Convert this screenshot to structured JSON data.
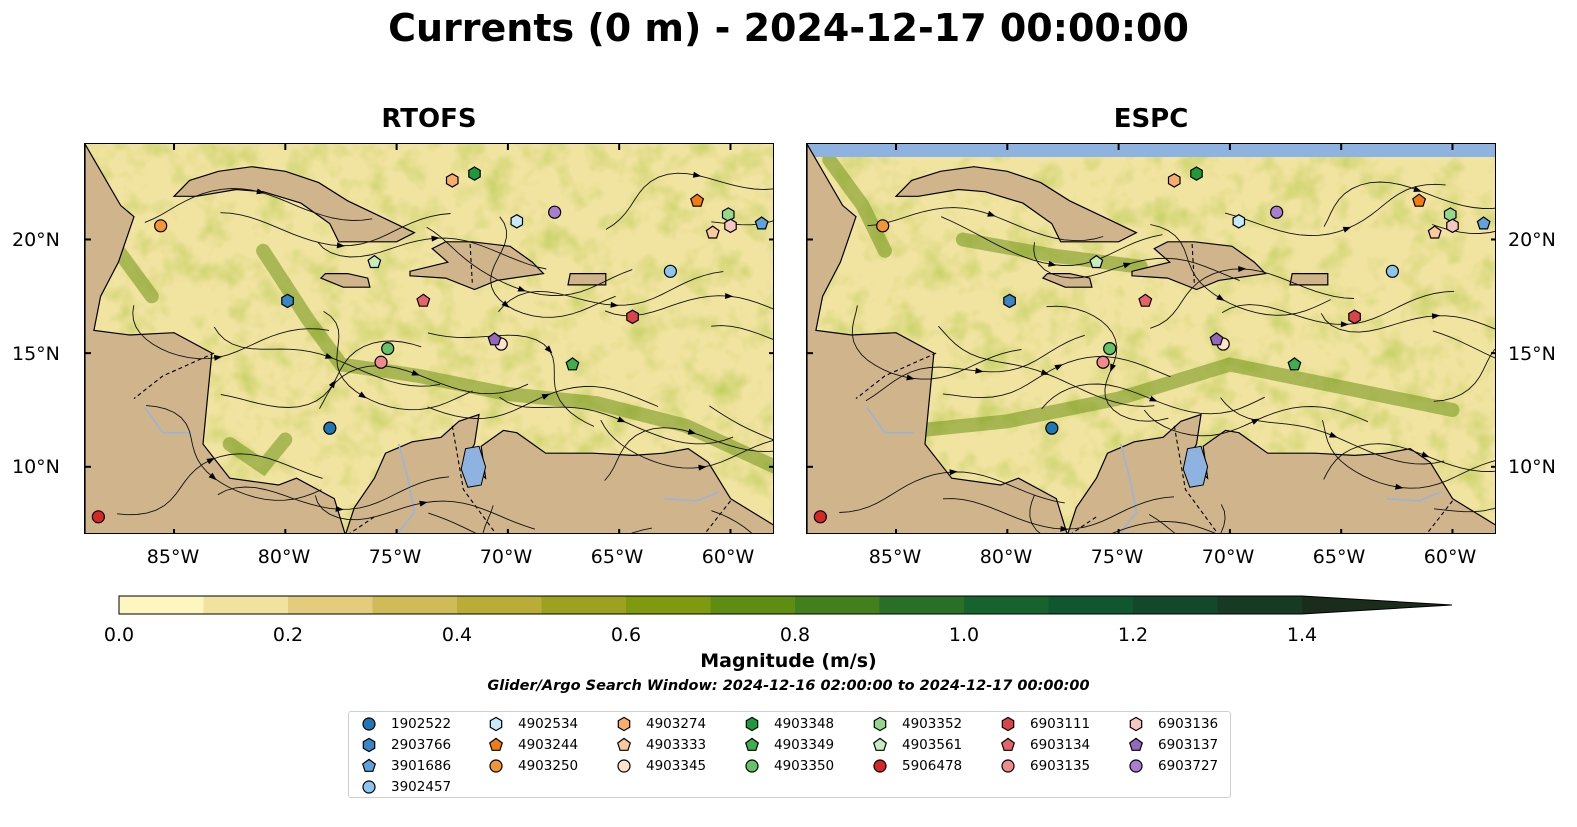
{
  "title": "Currents (0 m) - 2024-12-17 00:00:00",
  "panels": [
    {
      "name": "RTOFS"
    },
    {
      "name": "ESPC"
    }
  ],
  "map": {
    "lon_range": [
      -89,
      -58
    ],
    "lat_range": [
      7,
      24.2
    ],
    "lon_ticks": [
      "85°W",
      "80°W",
      "75°W",
      "70°W",
      "65°W",
      "60°W"
    ],
    "lat_ticks": [
      "20°N",
      "15°N",
      "10°N"
    ],
    "colors": {
      "land": "#d0b48c",
      "water_body": "#8fb3e0",
      "rivers": "#9ab5d8",
      "border": "#000000"
    }
  },
  "colorbar": {
    "label": "Magnitude (m/s)",
    "ticks": [
      "0.0",
      "0.2",
      "0.4",
      "0.6",
      "0.8",
      "1.0",
      "1.2",
      "1.4"
    ],
    "range": [
      0,
      1.5
    ],
    "extend": "max",
    "colors": [
      "#fdf6bf",
      "#f2e2a0",
      "#e3cd7c",
      "#cfbb57",
      "#b9ad38",
      "#9ca220",
      "#7f9a0f",
      "#5f8d12",
      "#437f1c",
      "#2a6f27",
      "#17632e",
      "#10562e",
      "#13482a",
      "#173a24",
      "#1a2d1c"
    ]
  },
  "search_window": "Glider/Argo Search Window: 2024-12-16 02:00:00 to 2024-12-17 00:00:00",
  "legend": [
    {
      "id": "1902522",
      "marker": "circle",
      "color": "#1f77b4"
    },
    {
      "id": "2903766",
      "marker": "hexagon",
      "color": "#3a85c6"
    },
    {
      "id": "3901686",
      "marker": "pentagon",
      "color": "#5fa2dd"
    },
    {
      "id": "3902457",
      "marker": "circle",
      "color": "#8ec5ee"
    },
    {
      "id": "4902534",
      "marker": "hexagon",
      "color": "#c6e9fb"
    },
    {
      "id": "4903244",
      "marker": "pentagon",
      "color": "#f07c12"
    },
    {
      "id": "4903250",
      "marker": "circle",
      "color": "#f5953a"
    },
    {
      "id": "4903274",
      "marker": "hexagon",
      "color": "#f9ad6b"
    },
    {
      "id": "4903333",
      "marker": "pentagon",
      "color": "#fcc89d"
    },
    {
      "id": "4903345",
      "marker": "circle",
      "color": "#fde2cc"
    },
    {
      "id": "4903348",
      "marker": "hexagon",
      "color": "#1e9a3a"
    },
    {
      "id": "4903349",
      "marker": "pentagon",
      "color": "#3fae4d"
    },
    {
      "id": "4903350",
      "marker": "circle",
      "color": "#66c266"
    },
    {
      "id": "4903352",
      "marker": "hexagon",
      "color": "#95d88c"
    },
    {
      "id": "4903561",
      "marker": "pentagon",
      "color": "#c7edbd"
    },
    {
      "id": "5906478",
      "marker": "circle",
      "color": "#d62728"
    },
    {
      "id": "6903111",
      "marker": "hexagon",
      "color": "#d9434a"
    },
    {
      "id": "6903134",
      "marker": "pentagon",
      "color": "#e7626a"
    },
    {
      "id": "6903135",
      "marker": "circle",
      "color": "#f08b8d"
    },
    {
      "id": "6903136",
      "marker": "hexagon",
      "color": "#f8c6c2"
    },
    {
      "id": "6903137",
      "marker": "pentagon",
      "color": "#9467bd"
    },
    {
      "id": "6903727",
      "marker": "circle",
      "color": "#a97ed2"
    }
  ],
  "platforms": [
    {
      "id": "1902522",
      "lon": -78.0,
      "lat": 11.7
    },
    {
      "id": "2903766",
      "lon": -79.9,
      "lat": 17.3
    },
    {
      "id": "3901686",
      "lon": -58.6,
      "lat": 20.7
    },
    {
      "id": "3902457",
      "lon": -62.7,
      "lat": 18.6
    },
    {
      "id": "4902534",
      "lon": -69.6,
      "lat": 20.8
    },
    {
      "id": "4903244",
      "lon": -61.5,
      "lat": 21.7
    },
    {
      "id": "4903250",
      "lon": -85.6,
      "lat": 20.6
    },
    {
      "id": "4903274",
      "lon": -72.5,
      "lat": 22.6
    },
    {
      "id": "4903333",
      "lon": -60.8,
      "lat": 20.3
    },
    {
      "id": "4903345",
      "lon": -70.3,
      "lat": 15.4
    },
    {
      "id": "4903348",
      "lon": -71.5,
      "lat": 22.9
    },
    {
      "id": "4903349",
      "lon": -67.1,
      "lat": 14.5
    },
    {
      "id": "4903350",
      "lon": -75.4,
      "lat": 15.2
    },
    {
      "id": "4903352",
      "lon": -60.1,
      "lat": 21.1
    },
    {
      "id": "4903561",
      "lon": -76.0,
      "lat": 19.0
    },
    {
      "id": "5906478",
      "lon": -88.4,
      "lat": 7.8
    },
    {
      "id": "6903111",
      "lon": -64.4,
      "lat": 16.6
    },
    {
      "id": "6903134",
      "lon": -73.8,
      "lat": 17.3
    },
    {
      "id": "6903135",
      "lon": -75.7,
      "lat": 14.6
    },
    {
      "id": "6903136",
      "lon": -60.0,
      "lat": 20.6
    },
    {
      "id": "6903137",
      "lon": -70.6,
      "lat": 15.6
    },
    {
      "id": "6903727",
      "lon": -67.9,
      "lat": 21.2
    }
  ]
}
